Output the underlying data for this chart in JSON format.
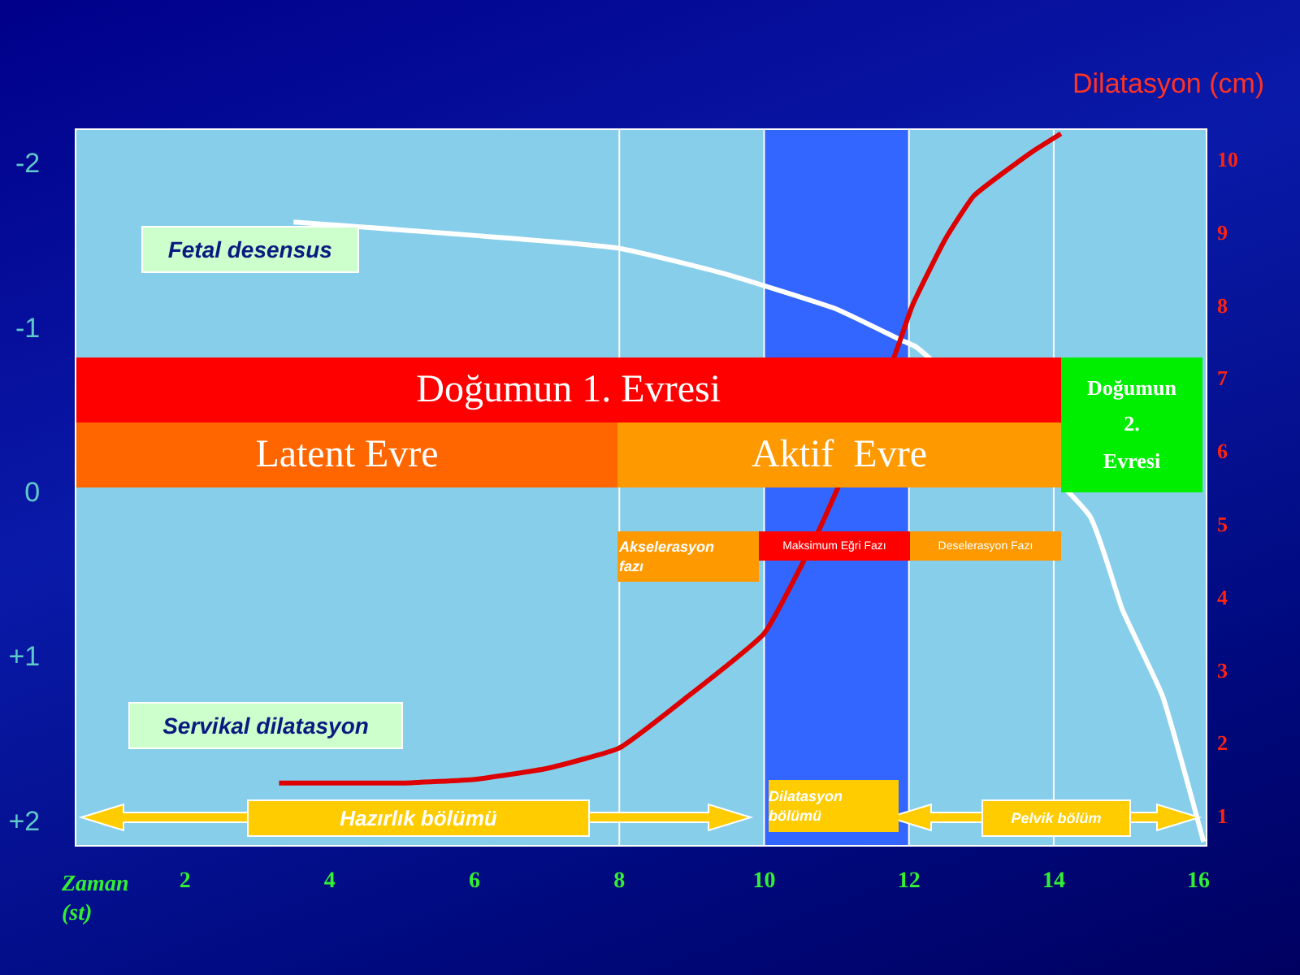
{
  "chart_data": {
    "type": "line",
    "xlabel": "Zaman (st)",
    "y2label": "Dilatasyon (cm)",
    "xlim": [
      0.5,
      16.1
    ],
    "xticks": [
      2,
      4,
      6,
      8,
      10,
      12,
      14,
      16
    ],
    "ylim": [
      2.15,
      -2.2
    ],
    "yticks": [
      -2,
      -1,
      0,
      {
        "value": 1,
        "label": "+1"
      },
      {
        "value": 2,
        "label": "+2"
      }
    ],
    "y2lim": [
      0.6,
      10.4
    ],
    "y2ticks": [
      1,
      2,
      3,
      4,
      5,
      6,
      7,
      8,
      9,
      10
    ],
    "series": [
      {
        "name": "Fetal desensus",
        "color": "#ffffff",
        "x": [
          3.5,
          8,
          9.5,
          11,
          11.9,
          12.1,
          14.5,
          14.95,
          15.5,
          16.07
        ],
        "values": [
          -1.64,
          -1.48,
          -1.32,
          -1.11,
          -0.92,
          -0.88,
          0.15,
          0.72,
          1.24,
          2.13
        ]
      },
      {
        "name": "Servikal dilatasyon",
        "color": "#dd0000",
        "axis": "y2",
        "x": [
          3.3,
          4,
          5,
          6,
          7,
          8,
          8.9,
          10,
          10.75,
          11.8,
          12.05,
          12.5,
          12.9,
          13.7,
          14.1
        ],
        "values": [
          1.45,
          1.45,
          1.45,
          1.5,
          1.65,
          1.93,
          2.6,
          3.5,
          4.9,
          7.3,
          8.0,
          8.9,
          9.5,
          10.1,
          10.35
        ]
      }
    ],
    "bands": [
      {
        "axis": "x",
        "from": 10,
        "to": 12,
        "color": "#3366ff"
      }
    ],
    "ref_lines": [
      {
        "axis": "x",
        "value": 8,
        "color": "#ffffff"
      },
      {
        "axis": "x",
        "value": 10,
        "color": "#ffffff"
      },
      {
        "axis": "x",
        "value": 12,
        "color": "#ffffff"
      },
      {
        "axis": "x",
        "value": 14,
        "color": "#ffffff"
      }
    ],
    "annotations": [
      "Doğumun 1. Evresi",
      "Latent Evre",
      "Aktif  Evre",
      "Doğumun 2. Evresi",
      "Akselerasyon fazı",
      "Maksimum Eğri Fazı",
      "Deselerasyon Fazı",
      "Hazırlık bölümü",
      "Dilatasyon bölümü",
      "Pelvik bölüm"
    ]
  }
}
